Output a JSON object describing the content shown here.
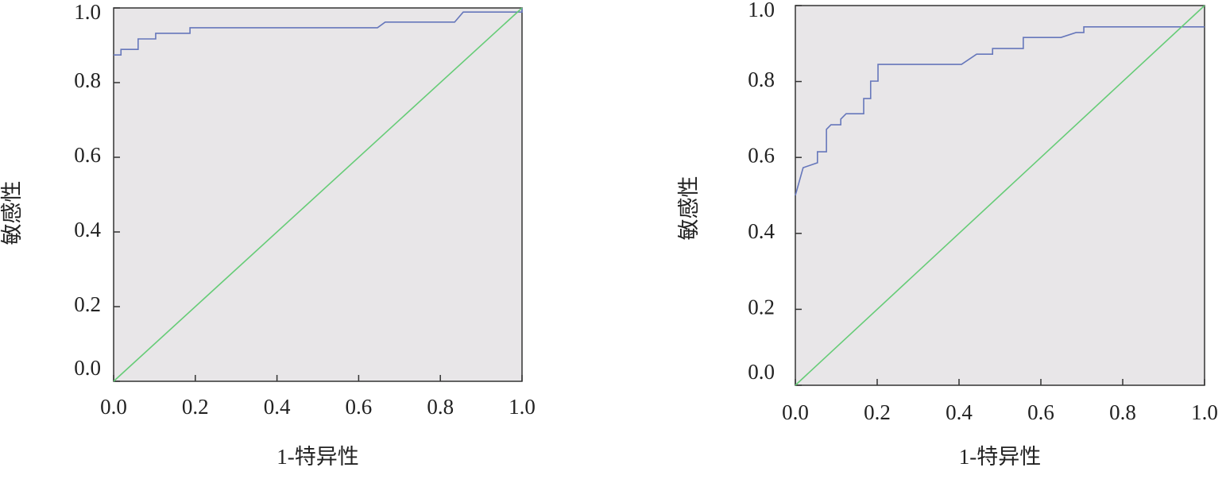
{
  "chart_data": [
    {
      "type": "line",
      "xlabel": "1-特异性",
      "ylabel": "敏感性",
      "xlim": [
        0,
        1
      ],
      "ylim": [
        0,
        1
      ],
      "xticks": [
        {
          "value": 0,
          "label": "0.0"
        },
        0.2,
        0.4,
        0.6,
        0.8,
        {
          "value": 1,
          "label": "1.0"
        }
      ],
      "yticks": [
        {
          "value": 0,
          "label": "0.0"
        },
        0.2,
        0.4,
        0.6,
        0.8,
        {
          "value": 1,
          "label": "1.0"
        }
      ],
      "background": "#e8e6e8",
      "series": [
        {
          "color": "#6677bb",
          "x": [
            0,
            0.018,
            0.018,
            0.06,
            0.06,
            0.103,
            0.103,
            0.187,
            0.187,
            0.646,
            0.665,
            0.835,
            0.856,
            1,
            1
          ],
          "values": [
            0.874,
            0.874,
            0.889,
            0.889,
            0.917,
            0.917,
            0.932,
            0.932,
            0.947,
            0.947,
            0.962,
            0.962,
            0.989,
            0.989,
            1
          ]
        },
        {
          "color": "#66cc77",
          "x": [
            0,
            1
          ],
          "values": [
            0,
            1
          ]
        }
      ]
    },
    {
      "type": "line",
      "xlabel": "1-特异性",
      "ylabel": "敏感性",
      "xlim": [
        0,
        1
      ],
      "ylim": [
        0,
        1
      ],
      "xticks": [
        {
          "value": 0,
          "label": "0.0"
        },
        0.2,
        0.4,
        0.6,
        0.8,
        {
          "value": 1,
          "label": "1.0"
        }
      ],
      "yticks": [
        {
          "value": 0,
          "label": "0.0"
        },
        0.2,
        0.4,
        0.6,
        0.8,
        {
          "value": 1,
          "label": "1.0"
        }
      ],
      "background": "#e8e6e8",
      "series": [
        {
          "color": "#6677bb",
          "x": [
            0,
            0,
            0.019,
            0.054,
            0.054,
            0.076,
            0.076,
            0.087,
            0.111,
            0.111,
            0.124,
            0.167,
            0.167,
            0.184,
            0.184,
            0.202,
            0.202,
            0.406,
            0.443,
            0.482,
            0.482,
            0.557,
            0.557,
            0.649,
            0.686,
            0.705,
            0.705,
            1
          ],
          "values": [
            0.5,
            0.5,
            0.573,
            0.586,
            0.615,
            0.615,
            0.674,
            0.686,
            0.686,
            0.701,
            0.715,
            0.715,
            0.755,
            0.755,
            0.801,
            0.801,
            0.845,
            0.845,
            0.872,
            0.872,
            0.887,
            0.887,
            0.916,
            0.916,
            0.929,
            0.929,
            0.944,
            0.944
          ]
        },
        {
          "color": "#66cc77",
          "x": [
            0,
            1
          ],
          "values": [
            0,
            1
          ]
        }
      ]
    }
  ]
}
